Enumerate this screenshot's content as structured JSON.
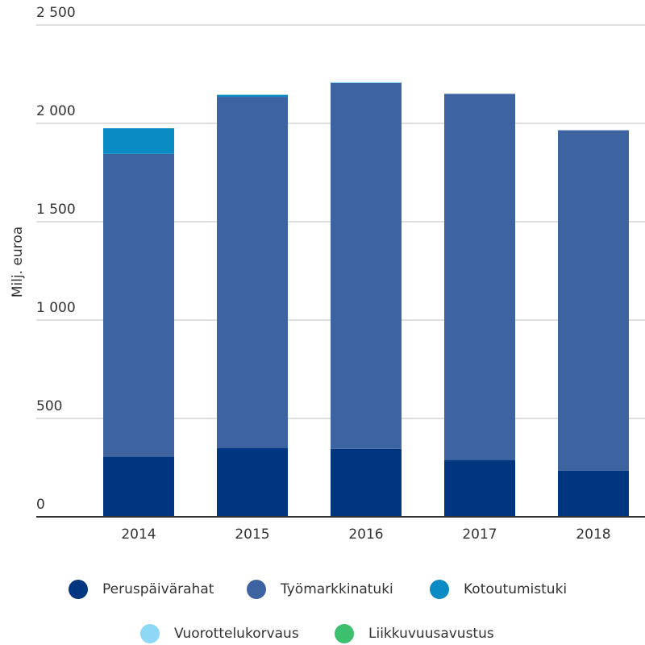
{
  "chart_data": {
    "type": "stacked_bar",
    "y_label": "Milj. euroa",
    "categories": [
      "2014",
      "2015",
      "2016",
      "2017",
      "2018"
    ],
    "series": [
      {
        "name": "Peruspäivärahat",
        "color": "#003580",
        "values": [
          305,
          350,
          345,
          290,
          235
        ]
      },
      {
        "name": "Työmarkkinatuki",
        "color": "#3d64a0",
        "values": [
          1540,
          1785,
          1860,
          1860,
          1730
        ]
      },
      {
        "name": "Kotoutumistuki",
        "color": "#0a8bc4",
        "values": [
          130,
          10,
          0,
          0,
          0
        ]
      },
      {
        "name": "Vuorottelukorvaus",
        "color": "#8fd8f5",
        "values": [
          0,
          0,
          5,
          0,
          0
        ]
      },
      {
        "name": "Liikkuvuusavustus",
        "color": "#3cc06e",
        "values": [
          0,
          0,
          0,
          0,
          0
        ]
      }
    ],
    "ylim": [
      0,
      2500
    ],
    "yticks": [
      0,
      500,
      {
        "value": 1000,
        "label": "1 000"
      },
      {
        "value": 1500,
        "label": "1 500"
      },
      {
        "value": 2000,
        "label": "2 000"
      },
      {
        "value": 2500,
        "label": "2 500"
      }
    ],
    "grid": true,
    "legend": "bottom"
  }
}
